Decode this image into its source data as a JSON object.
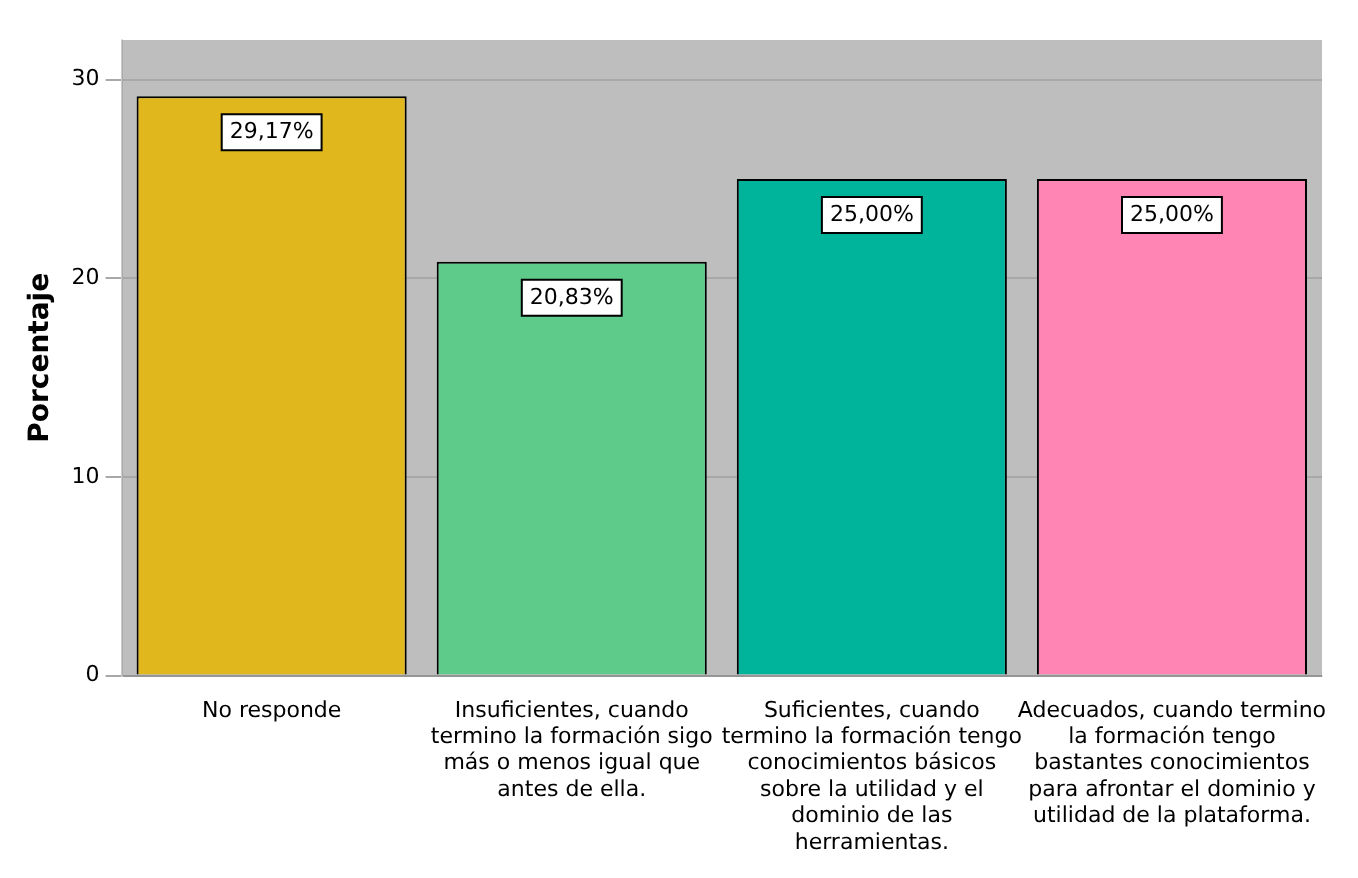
{
  "chart_data": {
    "type": "bar",
    "ylabel": "Porcentaje",
    "categories": [
      "No responde",
      "Insuficientes, cuando termino la formación sigo más o menos igual que antes de ella.",
      "Suficientes, cuando termino la formación tengo conocimientos básicos sobre la utilidad y el dominio de las herramientas.",
      "Adecuados, cuando termino la formación tengo bastantes conocimientos para afrontar el dominio y utilidad de la plataforma."
    ],
    "values": [
      29.17,
      20.83,
      25.0,
      25.0
    ],
    "colors": [
      "#e0b81e",
      "#5ecb8a",
      "#00b39b",
      "#ff85b4"
    ],
    "value_labels": [
      "29,17%",
      "20,83%",
      "25,00%",
      "25,00%"
    ],
    "ylim": [
      0,
      32
    ],
    "yticks": [
      0,
      10,
      20,
      30
    ],
    "grid": "y",
    "legend": false
  }
}
